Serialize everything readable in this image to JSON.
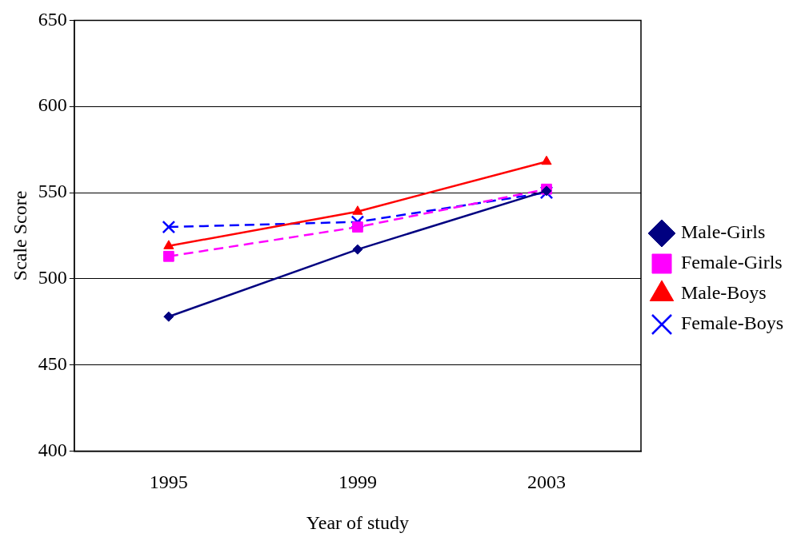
{
  "chart_data": {
    "type": "line",
    "xlabel": "Year of study",
    "ylabel": "Scale Score",
    "categories": [
      "1995",
      "1999",
      "2003"
    ],
    "series": [
      {
        "name": "Male-Girls",
        "color": "#000080",
        "values": [
          478,
          517,
          551
        ],
        "marker": "diamond",
        "line_style": "solid"
      },
      {
        "name": "Female-Girls",
        "color": "#ff00ff",
        "values": [
          513,
          530,
          552
        ],
        "marker": "square",
        "line_style": "dashed"
      },
      {
        "name": "Male-Boys",
        "color": "#ff0000",
        "values": [
          519,
          539,
          568
        ],
        "marker": "triangle",
        "line_style": "solid"
      },
      {
        "name": "Female-Boys",
        "color": "#0000ff",
        "values": [
          530,
          533,
          550
        ],
        "marker": "cross",
        "line_style": "dashed"
      }
    ],
    "ylim": [
      400,
      650
    ],
    "yticks": [
      400,
      450,
      500,
      550,
      600,
      650
    ],
    "grid": "y",
    "legend": "right"
  }
}
